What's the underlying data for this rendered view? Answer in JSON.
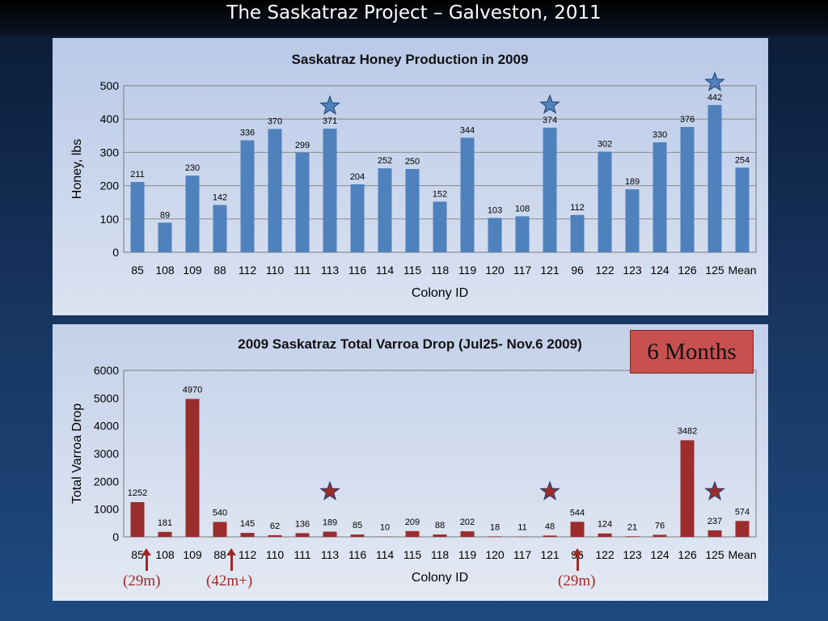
{
  "slide": {
    "title": "The Saskatraz Project – Galveston, 2011"
  },
  "chart_data": [
    {
      "type": "bar",
      "title": "Saskatraz Honey Production in 2009",
      "xlabel": "Colony ID",
      "ylabel": "Honey, lbs",
      "ylim": [
        0,
        500
      ],
      "yticks": [
        0,
        100,
        200,
        300,
        400,
        500
      ],
      "grid": true,
      "bar_color": "#4f81bd",
      "categories": [
        "85",
        "108",
        "109",
        "88",
        "112",
        "110",
        "111",
        "113",
        "116",
        "114",
        "115",
        "118",
        "119",
        "120",
        "117",
        "121",
        "96",
        "122",
        "123",
        "124",
        "126",
        "125",
        "Mean"
      ],
      "values": [
        211,
        89,
        230,
        142,
        336,
        370,
        299,
        371,
        204,
        252,
        250,
        152,
        344,
        103,
        108,
        374,
        112,
        302,
        189,
        330,
        376,
        442,
        254
      ],
      "starred_categories": [
        "113",
        "121",
        "125"
      ],
      "star_color": "#4f81bd"
    },
    {
      "type": "bar",
      "title": "2009 Saskatraz Total Varroa Drop (Jul25- Nov.6 2009)",
      "xlabel": "Colony ID",
      "ylabel": "Total Varroa Drop",
      "ylim": [
        0,
        6000
      ],
      "yticks": [
        0,
        1000,
        2000,
        3000,
        4000,
        5000,
        6000
      ],
      "grid": false,
      "bar_color": "#9b2d2d",
      "categories": [
        "85",
        "108",
        "109",
        "88",
        "112",
        "110",
        "111",
        "113",
        "116",
        "114",
        "115",
        "118",
        "119",
        "120",
        "117",
        "121",
        "96",
        "122",
        "123",
        "124",
        "126",
        "125",
        "Mean"
      ],
      "values": [
        1252,
        181,
        4970,
        540,
        145,
        62,
        136,
        189,
        85,
        10,
        209,
        88,
        202,
        18,
        11,
        48,
        544,
        124,
        21,
        76,
        3482,
        237,
        574
      ],
      "starred_categories": [
        "113",
        "121",
        "125"
      ],
      "star_color": "#9b2d2d"
    }
  ],
  "annotations": {
    "badge": "6 Months",
    "notes": [
      {
        "label": "(29m)",
        "category": "85"
      },
      {
        "label": "(42m+)",
        "category": "88"
      },
      {
        "label": "(29m)",
        "category": "96"
      }
    ],
    "note_color": "#a02828"
  }
}
